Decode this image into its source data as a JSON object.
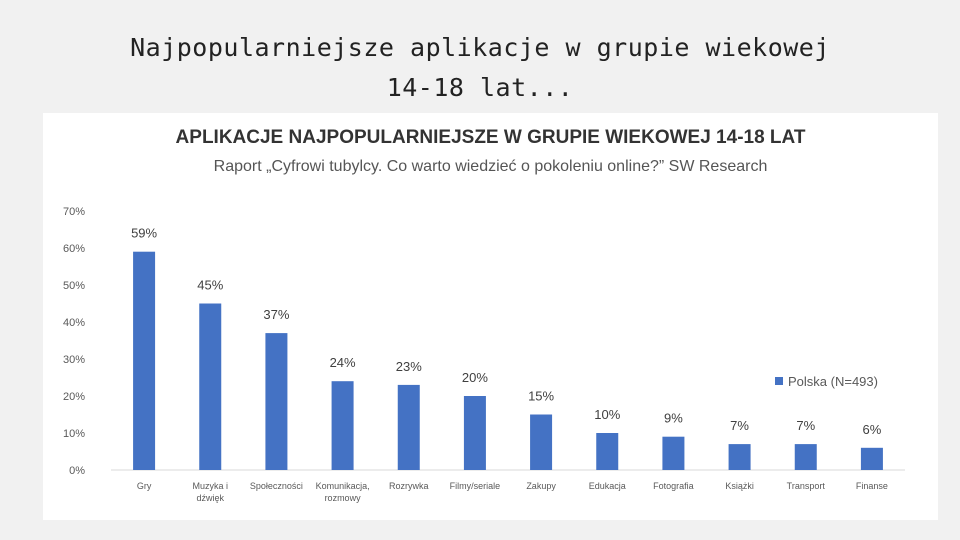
{
  "slide": {
    "title_line1": "Najpopularniejsze aplikacje w grupie wiekowej",
    "title_line2": "14-18 lat..."
  },
  "chart_data": {
    "type": "bar",
    "title": "APLIKACJE NAJPOPULARNIEJSZE W GRUPIE WIEKOWEJ 14-18 LAT",
    "subtitle": "Raport „Cyfrowi tubylcy. Co warto wiedzieć o pokoleniu online?” SW Research",
    "categories": [
      [
        "Gry"
      ],
      [
        "Muzyka i",
        "dźwięk"
      ],
      [
        "Społeczności"
      ],
      [
        "Komunikacja,",
        "rozmowy"
      ],
      [
        "Rozrywka"
      ],
      [
        "Filmy/seriale"
      ],
      [
        "Zakupy"
      ],
      [
        "Edukacja"
      ],
      [
        "Fotografia"
      ],
      [
        "Książki"
      ],
      [
        "Transport"
      ],
      [
        "Finanse"
      ]
    ],
    "series": [
      {
        "name": "Polska (N=493)",
        "values": [
          59,
          45,
          37,
          24,
          23,
          20,
          15,
          10,
          9,
          7,
          7,
          6
        ],
        "data_labels": [
          "59%",
          "45%",
          "37%",
          "24%",
          "23%",
          "20%",
          "15%",
          "10%",
          "9%",
          "7%",
          "7%",
          "6%"
        ]
      }
    ],
    "ylim": [
      0,
      70
    ],
    "yticks": [
      0,
      10,
      20,
      30,
      40,
      50,
      60,
      70
    ],
    "ytick_labels": [
      "0%",
      "10%",
      "20%",
      "30%",
      "40%",
      "50%",
      "60%",
      "70%"
    ],
    "grid": false,
    "legend_position": "right",
    "colors": {
      "bar": "#4472c4"
    }
  }
}
